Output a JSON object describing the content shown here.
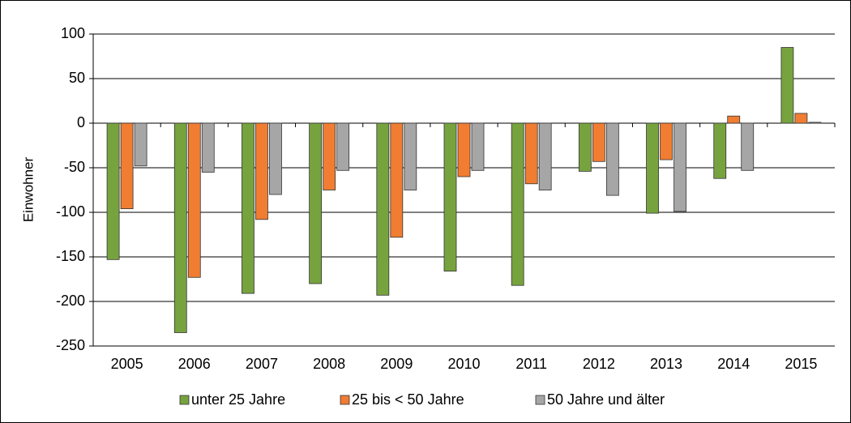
{
  "chart_data": {
    "type": "bar",
    "y_label": "Einwohner",
    "categories": [
      "2005",
      "2006",
      "2007",
      "2008",
      "2009",
      "2010",
      "2011",
      "2012",
      "2013",
      "2014",
      "2015"
    ],
    "series": [
      {
        "name": "unter 25 Jahre",
        "color": "#77a33f",
        "values": [
          -153,
          -235,
          -191,
          -180,
          -193,
          -166,
          -182,
          -54,
          -101,
          -62,
          85
        ]
      },
      {
        "name": "25 bis < 50 Jahre",
        "color": "#f07d32",
        "values": [
          -96,
          -173,
          -108,
          -75,
          -128,
          -60,
          -68,
          -43,
          -41,
          8,
          11
        ]
      },
      {
        "name": "50 Jahre und älter",
        "color": "#a6a6a6",
        "values": [
          -48,
          -55,
          -80,
          -53,
          -75,
          -53,
          -75,
          -81,
          -99,
          -53,
          1
        ]
      }
    ],
    "ylim": [
      -250,
      100
    ],
    "yticks": [
      -250,
      -200,
      -150,
      -100,
      -50,
      0,
      50,
      100
    ],
    "grid": true,
    "legend": "bottom"
  }
}
